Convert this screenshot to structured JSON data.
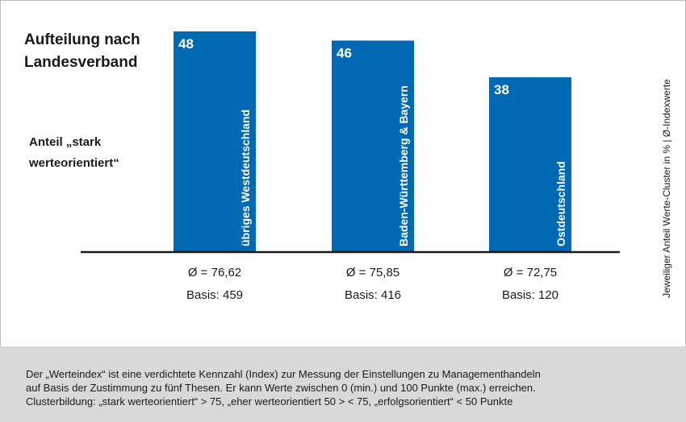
{
  "title": "Aufteilung nach Landesverband",
  "ylabel": "Anteil „stark werteorientiert“",
  "side_label": "Jeweiliger Anteil Werte-Cluster in % | Ø-Indexwerte",
  "footer": [
    "Der „Werteindex“ ist eine verdichtete Kennzahl (Index) zur Messung der Einstellungen zu Managementhandeln",
    "auf Basis der Zustimmung zu fünf Thesen. Er kann Werte zwischen 0 (min.) und 100 Punkte (max.) erreichen.",
    "Clusterbildung: „stark werteorientiert“ > 75, „eher werteorientiert 50 > < 75, „erfolgsorientiert“ < 50 Punkte"
  ],
  "colors": {
    "bar": "#0069b4",
    "bar_text": "#ffffff",
    "axis": "#1a1a1a",
    "footer_bg": "#d9d9d9"
  },
  "chart_data": {
    "type": "bar",
    "categories": [
      "übriges Westdeutschland",
      "Baden-Württemberg & Bayern",
      "Ostdeutschland"
    ],
    "values": [
      48,
      46,
      38
    ],
    "value_labels": [
      "48",
      "46",
      "38"
    ],
    "avg_index": [
      "Ø = 76,62",
      "Ø = 75,85",
      "Ø = 72,75"
    ],
    "basis": [
      "Basis: 459",
      "Basis: 416",
      "Basis: 120"
    ],
    "ylim": [
      0,
      48
    ],
    "grid": false
  }
}
